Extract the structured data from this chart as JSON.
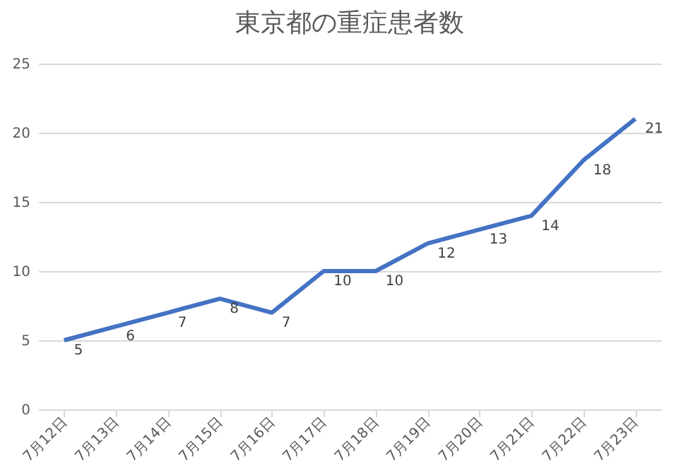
{
  "chart_data": {
    "type": "line",
    "title": "東京都の重症患者数",
    "categories": [
      "7月12日",
      "7月13日",
      "7月14日",
      "7月15日",
      "7月16日",
      "7月17日",
      "7月18日",
      "7月19日",
      "7月20日",
      "7月21日",
      "7月22日",
      "7月23日"
    ],
    "series": [
      {
        "color": "#4472c4",
        "values": [
          5,
          6,
          7,
          8,
          7,
          10,
          10,
          12,
          13,
          14,
          18,
          21
        ]
      }
    ],
    "ylim": [
      0,
      25
    ],
    "yticks": [
      0,
      5,
      10,
      15,
      20,
      25
    ],
    "grid": "y",
    "data_labels": true,
    "legend": false
  }
}
